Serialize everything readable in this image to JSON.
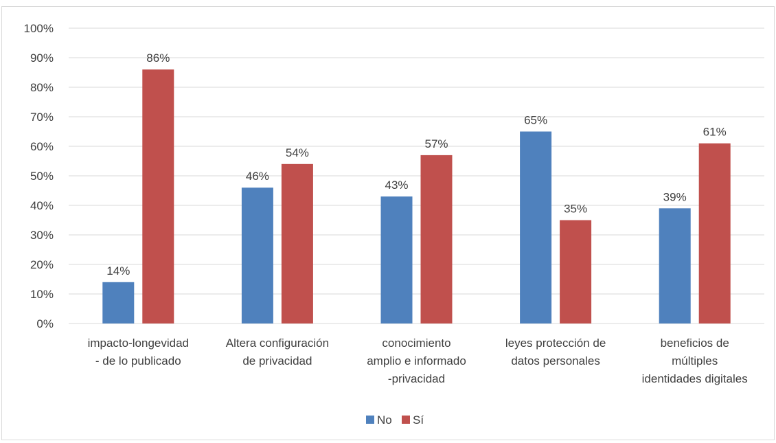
{
  "chart_data": {
    "type": "bar",
    "title": "",
    "xlabel": "",
    "ylabel": "",
    "ylim": [
      0,
      100
    ],
    "y_ticks": [
      "0%",
      "10%",
      "20%",
      "30%",
      "40%",
      "50%",
      "60%",
      "70%",
      "80%",
      "90%",
      "100%"
    ],
    "grid": true,
    "legend_position": "bottom",
    "categories": [
      [
        "impacto-longevidad",
        "- de lo publicado"
      ],
      [
        "Altera configuración",
        "de privacidad"
      ],
      [
        "conocimiento",
        "amplio e informado",
        "-privacidad"
      ],
      [
        "leyes protección de",
        "datos personales"
      ],
      [
        "beneficios de",
        "múltiples",
        "identidades digitales"
      ]
    ],
    "series": [
      {
        "name": "No",
        "color": "#4f81bd",
        "values": [
          14,
          46,
          43,
          65,
          39
        ],
        "labels": [
          "14%",
          "46%",
          "43%",
          "65%",
          "39%"
        ]
      },
      {
        "name": "Sí",
        "color": "#c0504d",
        "values": [
          86,
          54,
          57,
          35,
          61
        ],
        "labels": [
          "86%",
          "54%",
          "57%",
          "35%",
          "61%"
        ]
      }
    ]
  }
}
